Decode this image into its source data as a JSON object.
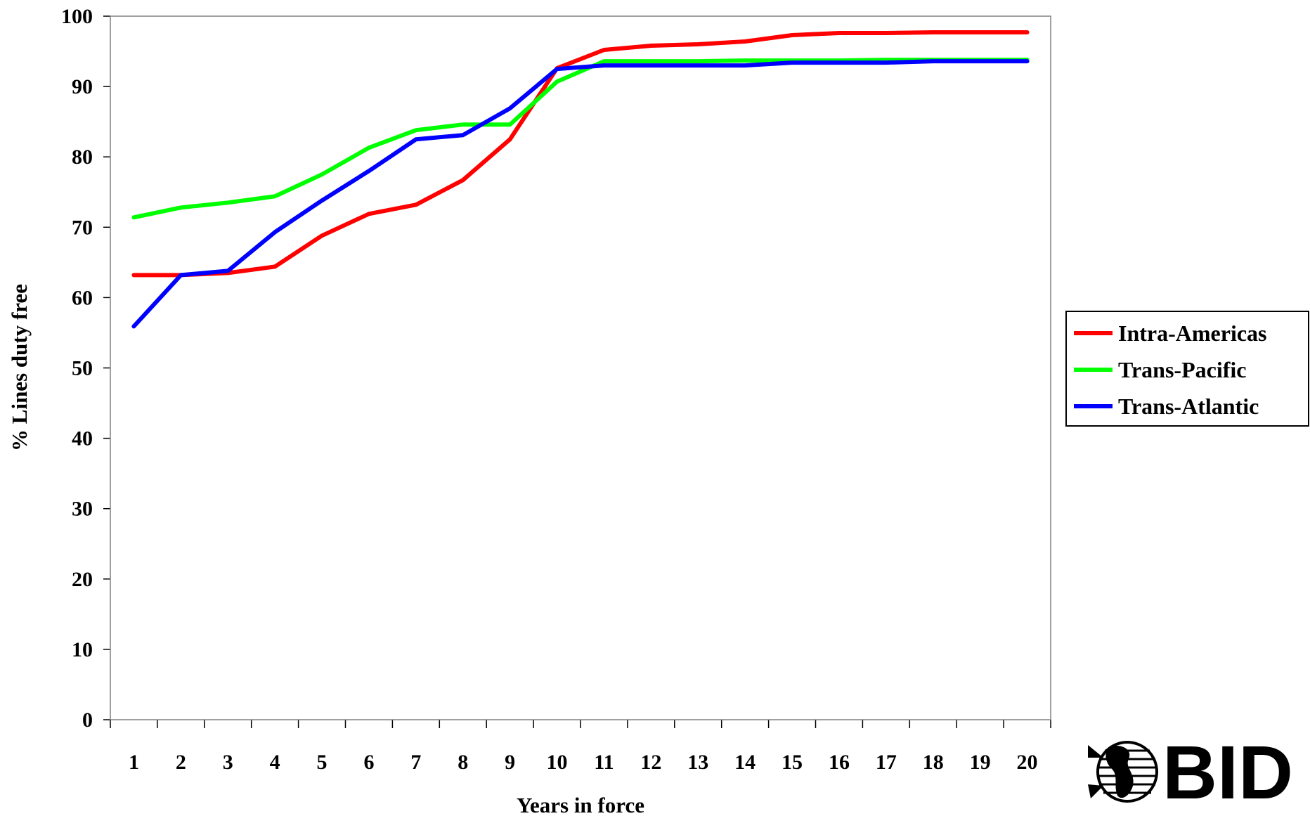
{
  "chart_data": {
    "type": "line",
    "title": "",
    "xlabel": "Years in force",
    "ylabel": "% Lines duty free",
    "x": [
      1,
      2,
      3,
      4,
      5,
      6,
      7,
      8,
      9,
      10,
      11,
      12,
      13,
      14,
      15,
      16,
      17,
      18,
      19,
      20
    ],
    "ylim": [
      0,
      100
    ],
    "yticks": [
      0,
      10,
      20,
      30,
      40,
      50,
      60,
      70,
      80,
      90,
      100
    ],
    "grid": false,
    "legend_position": "right",
    "series": [
      {
        "name": "Intra-Americas",
        "color": "#ff0000",
        "values": [
          63.2,
          63.2,
          63.5,
          64.4,
          68.8,
          71.9,
          73.2,
          76.7,
          82.5,
          92.6,
          95.2,
          95.8,
          96.0,
          96.4,
          97.3,
          97.6,
          97.6,
          97.7,
          97.7,
          97.7
        ]
      },
      {
        "name": "Trans-Pacific",
        "color": "#00ff00",
        "values": [
          71.4,
          72.8,
          73.5,
          74.4,
          77.5,
          81.3,
          83.8,
          84.6,
          84.6,
          90.7,
          93.6,
          93.6,
          93.6,
          93.7,
          93.7,
          93.7,
          93.8,
          93.8,
          93.8,
          93.8
        ]
      },
      {
        "name": "Trans-Atlantic",
        "color": "#0000ff",
        "values": [
          55.9,
          63.2,
          63.8,
          69.3,
          73.8,
          78.0,
          82.5,
          83.1,
          86.9,
          92.5,
          93.0,
          93.0,
          93.0,
          93.0,
          93.4,
          93.4,
          93.4,
          93.6,
          93.6,
          93.6
        ]
      }
    ]
  },
  "logo": {
    "text": "BID",
    "icon": "globe-icon"
  }
}
